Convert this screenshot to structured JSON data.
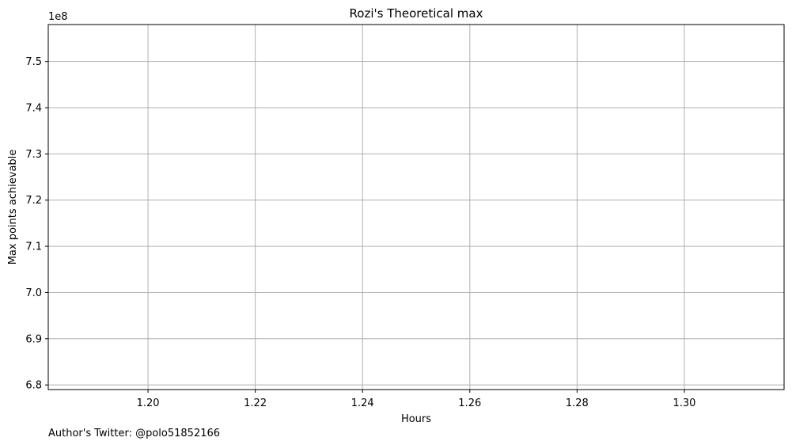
{
  "chart_data": {
    "type": "line",
    "title": "Rozi's Theoretical max",
    "xlabel": "Hours",
    "ylabel": "Max points achievable",
    "xlim": [
      1.1814,
      1.3186
    ],
    "ylim": [
      679000000,
      758000000
    ],
    "x_ticks": [
      1.2,
      1.22,
      1.24,
      1.26,
      1.28,
      1.3
    ],
    "x_tick_labels": [
      "1.20",
      "1.22",
      "1.24",
      "1.26",
      "1.28",
      "1.30"
    ],
    "y_ticks": [
      680000000,
      690000000,
      700000000,
      710000000,
      720000000,
      730000000,
      740000000,
      750000000
    ],
    "y_tick_labels": [
      "6.8",
      "6.9",
      "7.0",
      "7.1",
      "7.2",
      "7.3",
      "7.4",
      "7.5"
    ],
    "y_offset_label": "1e8",
    "grid": true,
    "series": []
  },
  "footer": {
    "text": "Author's Twitter: @polo51852166"
  },
  "colors": {
    "grid": "#b0b0b0",
    "axis": "#000000"
  }
}
